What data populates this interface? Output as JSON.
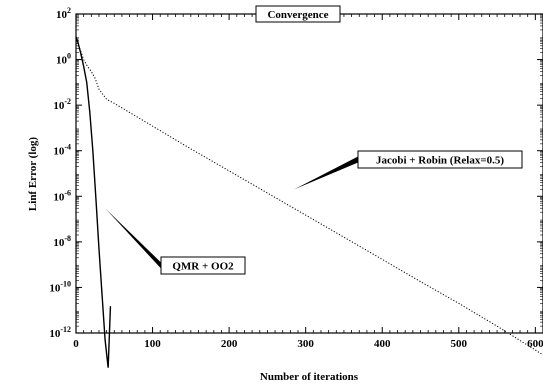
{
  "chart_data": {
    "type": "line",
    "title": "Convergence",
    "xlabel": "Number of iterations",
    "ylabel": "Linf Error (log)",
    "xlim": [
      0,
      610
    ],
    "ylim_exp": [
      -12,
      2
    ],
    "yscale": "log",
    "x_ticks": [
      0,
      100,
      200,
      300,
      400,
      500,
      600
    ],
    "x_tick_labels": [
      "0",
      "100",
      "200",
      "300",
      "400",
      "500",
      "600"
    ],
    "y_ticks_exp": [
      2,
      0,
      -2,
      -4,
      -6,
      -8,
      -10,
      -12
    ],
    "y_tick_labels": [
      {
        "base": "10",
        "exp": "2"
      },
      {
        "base": "10",
        "exp": "0"
      },
      {
        "base": "10",
        "exp": "-2"
      },
      {
        "base": "10",
        "exp": "-4"
      },
      {
        "base": "10",
        "exp": "-6"
      },
      {
        "base": "10",
        "exp": "-8"
      },
      {
        "base": "10",
        "exp": "-10"
      },
      {
        "base": "10",
        "exp": "-12"
      }
    ],
    "grid": false,
    "series": [
      {
        "name": "QMR + OO2",
        "style": "solid",
        "x": [
          0,
          3,
          6,
          10,
          14,
          18,
          22,
          26,
          30,
          34,
          38,
          42,
          45
        ],
        "y": [
          10,
          5,
          2,
          0.5,
          0.1,
          0.005,
          0.0001,
          8e-07,
          5e-09,
          5e-11,
          5e-13,
          3e-14,
          1.5e-11
        ]
      },
      {
        "name": "Jacobi + Robin (Relax=0.5)",
        "style": "dotted",
        "x": [
          0,
          5,
          10,
          15,
          20,
          25,
          30,
          40,
          50,
          100,
          150,
          200,
          250,
          300,
          350,
          400,
          450,
          500,
          550,
          610
        ],
        "y": [
          10,
          3,
          1,
          0.5,
          0.3,
          0.15,
          0.05,
          0.018,
          0.012,
          0.0012,
          0.00012,
          1.3e-05,
          1.4e-06,
          1.5e-07,
          1.6e-08,
          1.7e-09,
          1.8e-10,
          2e-11,
          2e-12,
          1.1e-13
        ]
      }
    ],
    "annotations": [
      {
        "text": "QMR + OO2",
        "point": [
          38,
          3e-07
        ]
      },
      {
        "text": "Jacobi + Robin (Relax=0.5)",
        "point": [
          285,
          2e-06
        ]
      }
    ]
  }
}
